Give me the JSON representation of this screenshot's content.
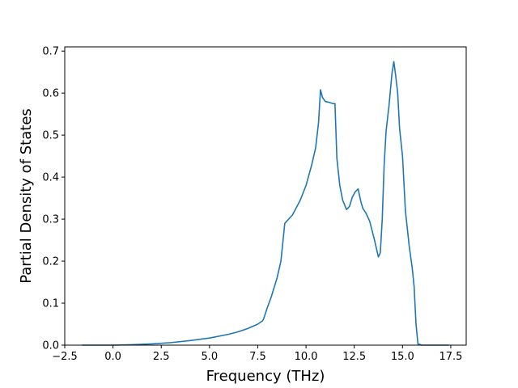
{
  "chart_data": {
    "type": "line",
    "title": "",
    "xlabel": "Frequency (THz)",
    "ylabel": "Partial Density of States",
    "xlim": [
      -2.5,
      18.3
    ],
    "ylim": [
      0.0,
      0.71
    ],
    "xticks": [
      -2.5,
      0.0,
      2.5,
      5.0,
      7.5,
      10.0,
      12.5,
      15.0,
      17.5
    ],
    "xtick_labels": [
      "−2.5",
      "0.0",
      "2.5",
      "5.0",
      "7.5",
      "10.0",
      "12.5",
      "15.0",
      "17.5"
    ],
    "yticks": [
      0.0,
      0.1,
      0.2,
      0.3,
      0.4,
      0.5,
      0.6,
      0.7
    ],
    "ytick_labels": [
      "0.0",
      "0.1",
      "0.2",
      "0.3",
      "0.4",
      "0.5",
      "0.6",
      "0.7"
    ],
    "grid": false,
    "legend": "none",
    "series": [
      {
        "color": "#1f77b4",
        "x": [
          -1.6,
          0.0,
          1.0,
          2.0,
          3.0,
          4.0,
          5.0,
          6.0,
          6.5,
          7.0,
          7.5,
          7.75,
          7.8,
          8.0,
          8.2,
          8.5,
          8.7,
          8.9,
          9.3,
          9.7,
          10.0,
          10.3,
          10.5,
          10.65,
          10.75,
          10.85,
          11.0,
          11.2,
          11.4,
          11.5,
          11.6,
          11.75,
          11.9,
          12.1,
          12.25,
          12.4,
          12.55,
          12.7,
          12.85,
          12.95,
          13.1,
          13.3,
          13.55,
          13.75,
          13.85,
          13.95,
          14.05,
          14.15,
          14.3,
          14.45,
          14.55,
          14.65,
          14.75,
          14.85,
          15.0,
          15.15,
          15.35,
          15.5,
          15.6,
          15.7,
          15.8,
          16.0,
          16.5,
          17.4
        ],
        "y": [
          0.0,
          0.0,
          0.001,
          0.003,
          0.006,
          0.011,
          0.017,
          0.026,
          0.032,
          0.04,
          0.05,
          0.058,
          0.062,
          0.09,
          0.115,
          0.16,
          0.2,
          0.29,
          0.31,
          0.345,
          0.38,
          0.43,
          0.47,
          0.53,
          0.608,
          0.59,
          0.58,
          0.578,
          0.575,
          0.575,
          0.445,
          0.38,
          0.345,
          0.323,
          0.33,
          0.352,
          0.365,
          0.372,
          0.34,
          0.325,
          0.315,
          0.295,
          0.25,
          0.21,
          0.22,
          0.3,
          0.43,
          0.51,
          0.57,
          0.645,
          0.675,
          0.64,
          0.6,
          0.515,
          0.45,
          0.32,
          0.235,
          0.185,
          0.14,
          0.05,
          0.003,
          0.0,
          0.0,
          0.0
        ]
      }
    ]
  }
}
